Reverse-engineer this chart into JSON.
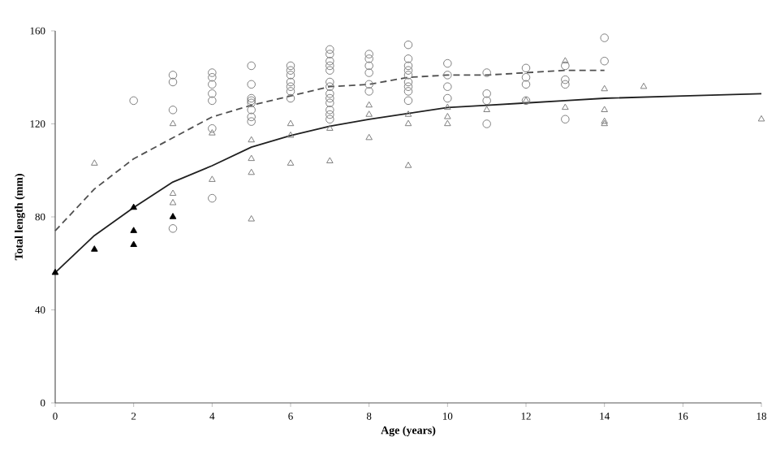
{
  "chart_data": {
    "type": "scatter",
    "xlabel": "Age (years)",
    "ylabel": "Total length (mm)",
    "xlim": [
      0,
      18
    ],
    "ylim": [
      0,
      160
    ],
    "xticks": [
      0,
      2,
      4,
      6,
      8,
      10,
      12,
      14,
      16,
      18
    ],
    "yticks": [
      0,
      40,
      80,
      120,
      160
    ],
    "grid": false,
    "series": [
      {
        "type": "scatter",
        "marker": "circle",
        "color": "#808080",
        "x": [
          2,
          3,
          3,
          3,
          3,
          4,
          4,
          4,
          4,
          4,
          4,
          4,
          5,
          5,
          5,
          5,
          5,
          5,
          5,
          5,
          6,
          6,
          6,
          6,
          6,
          6,
          6,
          7,
          7,
          7,
          7,
          7,
          7,
          7,
          7,
          7,
          7,
          7,
          7,
          7,
          8,
          8,
          8,
          8,
          8,
          8,
          9,
          9,
          9,
          9,
          9,
          9,
          9,
          9,
          9,
          10,
          10,
          10,
          10,
          11,
          11,
          11,
          11,
          12,
          12,
          12,
          12,
          13,
          13,
          13,
          13,
          14,
          14
        ],
        "values": [
          130,
          141,
          138,
          126,
          75,
          142,
          140,
          137,
          133,
          130,
          118,
          88,
          145,
          137,
          131,
          130,
          129,
          126,
          123,
          121,
          145,
          143,
          141,
          138,
          136,
          134,
          131,
          152,
          150,
          147,
          145,
          143,
          138,
          136,
          133,
          131,
          129,
          126,
          124,
          122,
          150,
          148,
          145,
          142,
          137,
          134,
          154,
          148,
          145,
          143,
          141,
          138,
          136,
          134,
          130,
          146,
          141,
          136,
          131,
          142,
          133,
          130,
          120,
          144,
          140,
          137,
          130,
          145,
          139,
          137,
          122,
          157,
          147
        ]
      },
      {
        "type": "scatter",
        "marker": "triangle",
        "color": "#808080",
        "x": [
          1,
          3,
          3,
          3,
          4,
          4,
          5,
          5,
          5,
          5,
          6,
          6,
          6,
          7,
          7,
          8,
          8,
          8,
          9,
          9,
          9,
          10,
          10,
          10,
          11,
          12,
          13,
          13,
          14,
          14,
          14,
          14,
          15,
          18
        ],
        "values": [
          103,
          120,
          90,
          86,
          116,
          96,
          113,
          105,
          99,
          79,
          120,
          115,
          103,
          118,
          104,
          128,
          124,
          114,
          124,
          120,
          102,
          127,
          123,
          120,
          126,
          130,
          147,
          127,
          135,
          126,
          121,
          120,
          136,
          122
        ]
      },
      {
        "marker": "triangle",
        "color": "#000000",
        "x": [
          0,
          1,
          2,
          2,
          2,
          3
        ],
        "values": [
          56,
          66,
          84,
          74,
          68,
          80
        ]
      },
      {
        "type": "line",
        "line_style": "dashed",
        "color": "#505050",
        "x": [
          0,
          1,
          2,
          3,
          4,
          5,
          6,
          7,
          8,
          9,
          10,
          11,
          12,
          13,
          14
        ],
        "values": [
          74,
          92,
          105,
          114,
          123,
          128,
          132,
          136,
          137,
          140,
          141,
          141,
          142,
          143,
          143
        ]
      },
      {
        "type": "line",
        "line_style": "solid",
        "color": "#202020",
        "x": [
          0,
          1,
          2,
          3,
          4,
          5,
          6,
          7,
          8,
          9,
          10,
          11,
          12,
          13,
          14,
          16,
          18
        ],
        "values": [
          56,
          72,
          84,
          95,
          102,
          110,
          115,
          119,
          122,
          124.5,
          127,
          128,
          129,
          130,
          131,
          132,
          133
        ]
      }
    ]
  }
}
